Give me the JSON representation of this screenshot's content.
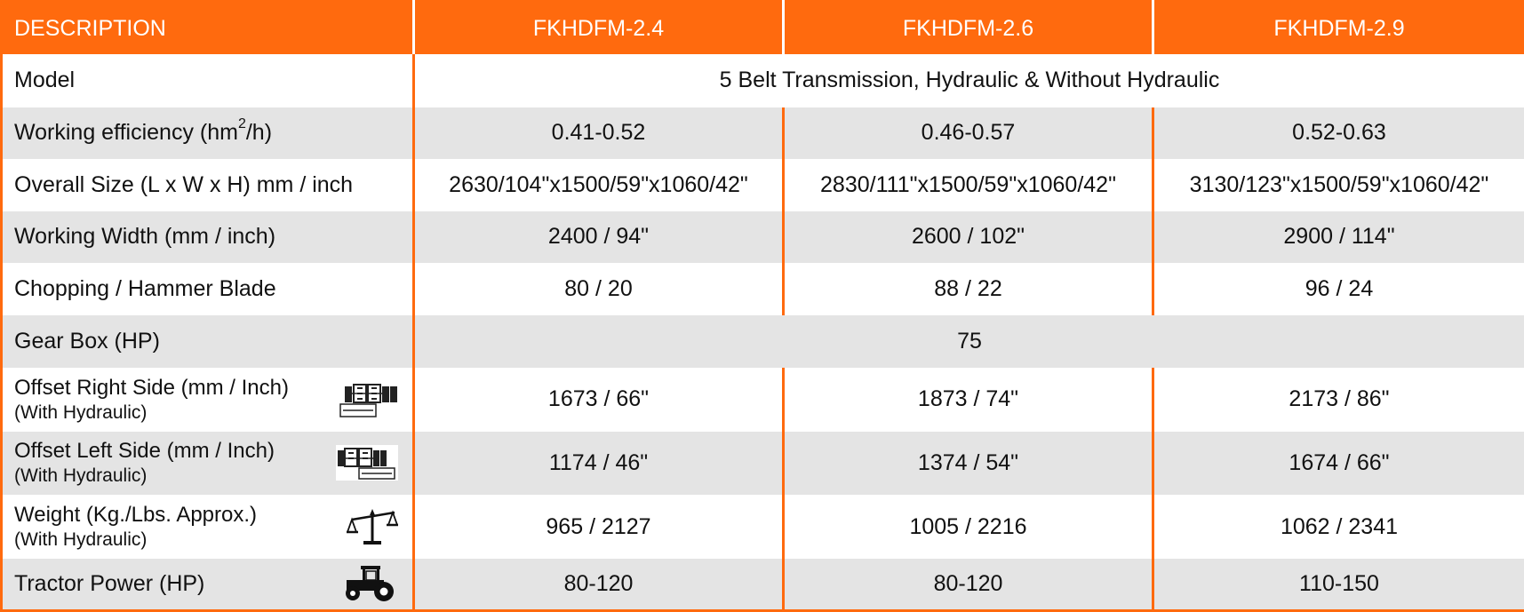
{
  "header": {
    "description": "DESCRIPTION",
    "models": [
      "FKHDFM-2.4",
      "FKHDFM-2.6",
      "FKHDFM-2.9"
    ]
  },
  "rows": {
    "model": {
      "label": "Model",
      "value": "5 Belt Transmission, Hydraulic & Without Hydraulic"
    },
    "efficiency": {
      "label_pre": "Working efficiency (hm",
      "label_sup": "2",
      "label_post": "/h)",
      "values": [
        "0.41-0.52",
        "0.46-0.57",
        "0.52-0.63"
      ]
    },
    "size": {
      "label": "Overall Size (L x W x H) mm / inch",
      "values": [
        "2630/104\"x1500/59\"x1060/42\"",
        "2830/111\"x1500/59\"x1060/42\"",
        "3130/123\"x1500/59\"x1060/42\""
      ]
    },
    "width": {
      "label": "Working Width (mm / inch)",
      "values": [
        "2400 / 94\"",
        "2600 / 102\"",
        "2900 / 114\""
      ]
    },
    "blade": {
      "label": "Chopping / Hammer Blade",
      "values": [
        "80 / 20",
        "88 / 22",
        "96 / 24"
      ]
    },
    "gearbox": {
      "label": "Gear Box (HP)",
      "value": "75"
    },
    "offset_right": {
      "label": "Offset Right Side (mm / Inch)",
      "sublabel": "(With Hydraulic)",
      "icon": "offset-right-icon",
      "values": [
        "1673 / 66\"",
        "1873 / 74\"",
        "2173 / 86\""
      ]
    },
    "offset_left": {
      "label": "Offset Left Side (mm / Inch)",
      "sublabel": "(With Hydraulic)",
      "icon": "offset-left-icon",
      "values": [
        "1174 / 46\"",
        "1374 / 54\"",
        "1674 / 66\""
      ]
    },
    "weight": {
      "label": "Weight (Kg./Lbs. Approx.)",
      "sublabel": "(With Hydraulic)",
      "icon": "scale-icon",
      "values": [
        "965 / 2127",
        "1005 / 2216",
        "1062 / 2341"
      ]
    },
    "tractor": {
      "label": "Tractor Power (HP)",
      "icon": "tractor-icon",
      "values": [
        "80-120",
        "80-120",
        "110-150"
      ]
    }
  },
  "colors": {
    "accent": "#ff6a0e",
    "stripe": "#e4e4e4"
  }
}
